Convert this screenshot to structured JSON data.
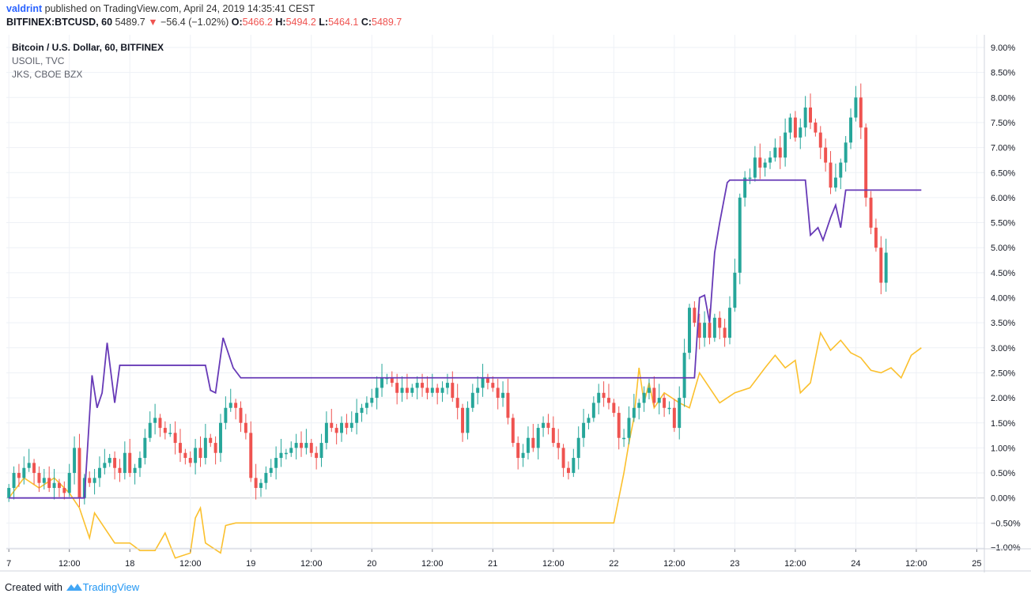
{
  "header": {
    "user": "valdrint",
    "published_text": "published on TradingView.com, April 24, 2019 14:35:41 CEST",
    "symbol": "BITFINEX:BTCUSD, 60",
    "last": "5489.7",
    "change": "−56.4 (−1.02%)",
    "o_label": "O:",
    "o": "5466.2",
    "h_label": "H:",
    "h": "5494.2",
    "l_label": "L:",
    "l": "5464.1",
    "c_label": "C:",
    "c": "5489.7"
  },
  "legend": {
    "main": "Bitcoin / U.S. Dollar, 60, BITFINEX",
    "s2": "USOIL, TVC",
    "s3": "JKS, CBOE BZX"
  },
  "footer": {
    "created": "Created with",
    "brand": "TradingView"
  },
  "colors": {
    "up": "#26a69a",
    "down": "#ef5350",
    "usoil": "#673ab7",
    "jks": "#fbc02d",
    "grid": "#eef1f6",
    "text": "#131722"
  },
  "chart_data": {
    "type": "candlestick",
    "title": "Bitcoin / U.S. Dollar, 60, BITFINEX",
    "y_unit": "% change",
    "ylim": [
      -1.0,
      9.2
    ],
    "yticks": [
      "9.00%",
      "8.50%",
      "8.00%",
      "7.50%",
      "7.00%",
      "6.50%",
      "6.00%",
      "5.50%",
      "5.00%",
      "4.50%",
      "4.00%",
      "3.50%",
      "3.00%",
      "2.50%",
      "2.00%",
      "1.50%",
      "1.00%",
      "0.50%",
      "0.00%",
      "−0.50%",
      "−1.00%"
    ],
    "x_range_hours": [
      -0.5,
      193.5
    ],
    "xticks": [
      {
        "t": 0,
        "label": "7"
      },
      {
        "t": 12,
        "label": "12:00"
      },
      {
        "t": 24,
        "label": "18"
      },
      {
        "t": 36,
        "label": "12:00"
      },
      {
        "t": 48,
        "label": "19"
      },
      {
        "t": 60,
        "label": "12:00"
      },
      {
        "t": 72,
        "label": "20"
      },
      {
        "t": 84,
        "label": "12:00"
      },
      {
        "t": 96,
        "label": "21"
      },
      {
        "t": 108,
        "label": "12:00"
      },
      {
        "t": 120,
        "label": "22"
      },
      {
        "t": 132,
        "label": "12:00"
      },
      {
        "t": 144,
        "label": "23"
      },
      {
        "t": 156,
        "label": "12:00"
      },
      {
        "t": 168,
        "label": "24"
      },
      {
        "t": 180,
        "label": "12:00"
      },
      {
        "t": 192,
        "label": "25"
      }
    ],
    "btc_close": [
      0.2,
      0.5,
      0.4,
      0.6,
      0.7,
      0.5,
      0.3,
      0.4,
      0.2,
      0.3,
      0.2,
      0.1,
      0.5,
      1.0,
      0.0,
      0.4,
      0.3,
      0.4,
      0.6,
      0.7,
      0.8,
      0.6,
      0.5,
      0.9,
      0.5,
      0.6,
      0.8,
      1.2,
      1.5,
      1.6,
      1.4,
      1.3,
      1.3,
      1.1,
      0.9,
      0.8,
      0.7,
      1.0,
      0.8,
      1.2,
      1.1,
      0.9,
      1.5,
      1.8,
      1.9,
      1.8,
      1.5,
      1.3,
      0.4,
      0.2,
      0.3,
      0.5,
      0.6,
      0.8,
      0.9,
      0.9,
      1.0,
      1.1,
      1.0,
      1.1,
      0.9,
      0.8,
      1.1,
      1.5,
      1.4,
      1.3,
      1.5,
      1.4,
      1.5,
      1.7,
      1.8,
      1.9,
      2.0,
      2.2,
      2.4,
      2.4,
      2.3,
      2.1,
      2.2,
      2.1,
      2.2,
      2.3,
      2.2,
      2.1,
      2.2,
      2.1,
      2.2,
      2.3,
      2.0,
      1.8,
      1.3,
      1.8,
      2.1,
      2.2,
      2.4,
      2.3,
      2.2,
      2.0,
      2.1,
      1.6,
      1.1,
      0.8,
      0.9,
      1.2,
      1.0,
      1.4,
      1.5,
      1.4,
      1.1,
      1.0,
      0.6,
      0.5,
      0.8,
      1.2,
      1.5,
      1.6,
      1.9,
      2.1,
      2.0,
      1.9,
      1.7,
      1.2,
      1.2,
      1.6,
      1.8,
      1.9,
      2.1,
      2.2,
      1.9,
      2.0,
      1.8,
      1.8,
      1.4,
      2.0,
      2.9,
      3.8,
      3.5,
      3.2,
      3.5,
      3.2,
      3.6,
      3.4,
      3.2,
      3.8,
      4.5,
      6.0,
      6.4,
      6.4,
      6.8,
      6.6,
      6.7,
      6.8,
      7.0,
      6.8,
      7.3,
      7.6,
      7.2,
      7.4,
      7.8,
      7.5,
      7.3,
      7.0,
      6.7,
      6.2,
      6.4,
      6.7,
      7.1,
      7.6,
      8.0,
      7.4,
      6.0,
      5.4,
      5.0,
      4.3,
      4.9
    ]
  }
}
